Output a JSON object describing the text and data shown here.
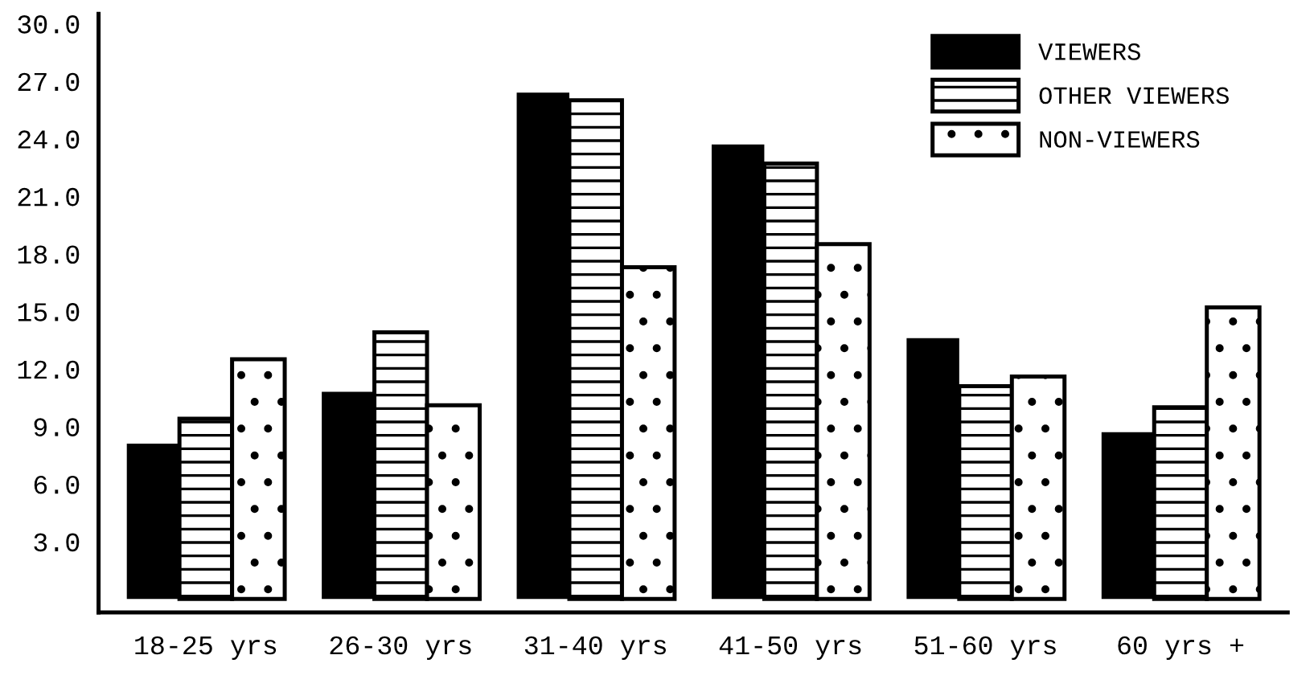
{
  "chart_data": {
    "type": "bar",
    "categories": [
      "18-25 yrs",
      "26-30 yrs",
      "31-40 yrs",
      "41-50 yrs",
      "51-60 yrs",
      "60 yrs +"
    ],
    "series": [
      {
        "name": "VIEWERS",
        "color": "#000000",
        "values": [
          8.1,
          10.8,
          26.4,
          23.7,
          13.6,
          8.7
        ]
      },
      {
        "name": "OTHER VIEWERS",
        "color": "#ffffff",
        "values": [
          9.4,
          13.9,
          26.0,
          22.7,
          11.1,
          10.0
        ]
      },
      {
        "name": "NON-VIEWERS",
        "color": "#ffffff",
        "values": [
          12.5,
          10.1,
          17.3,
          18.5,
          11.6,
          15.2
        ]
      }
    ],
    "ylim": [
      -0.7,
      30.5
    ],
    "yticks": [
      {
        "value": 3,
        "label": "3.0"
      },
      {
        "value": 6,
        "label": "6.0"
      },
      {
        "value": 9,
        "label": "9.0"
      },
      {
        "value": 12,
        "label": "12.0"
      },
      {
        "value": 15,
        "label": "15.0"
      },
      {
        "value": 18,
        "label": "18.0"
      },
      {
        "value": 21,
        "label": "21.0"
      },
      {
        "value": 24,
        "label": "24.0"
      },
      {
        "value": 27,
        "label": "27.0"
      },
      {
        "value": 30,
        "label": "30.0"
      }
    ],
    "grid": false,
    "legend": "top right"
  }
}
